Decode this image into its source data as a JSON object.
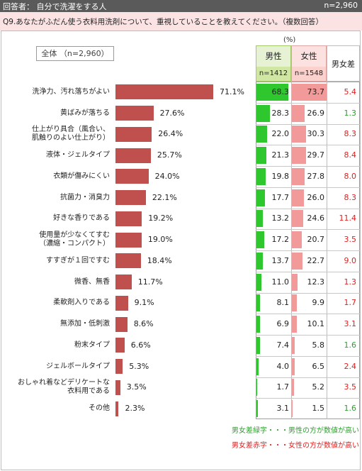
{
  "header": {
    "title": "回答者： 自分で洗濯をする人",
    "n": "n=2,960"
  },
  "question": "Q9.あなたがふだん使う衣料用洗剤について、重視していることを教えてください。（複数回答）",
  "unit": "(%)",
  "overall_label": "全体 （n=2,960）",
  "columns": {
    "male": {
      "title": "男性",
      "n": "n=1412"
    },
    "female": {
      "title": "女性",
      "n": "n=1548"
    },
    "diff": {
      "title": "男女差"
    }
  },
  "colors": {
    "bar": "#c0504d",
    "male": "#2ec82e",
    "female": "#f29a9a",
    "green_text": "#2e9e2e",
    "red_text": "#e02020"
  },
  "notes": {
    "green": "男女差緑字・・・男性の方が数値が高い",
    "red": "男女差赤字・・・女性の方が数値が高い"
  },
  "chart_data": {
    "type": "bar",
    "categories": [
      [
        "洗浄力、汚れ落ちがよい"
      ],
      [
        "黄ばみが落ちる"
      ],
      [
        "仕上がり具合（風合い、",
        "肌触りのよい仕上がり）"
      ],
      [
        "液体・ジェルタイプ"
      ],
      [
        "衣類が傷みにくい"
      ],
      [
        "抗菌力・消臭力"
      ],
      [
        "好きな香りである"
      ],
      [
        "使用量が少なくてすむ",
        "（濃縮・コンパクト）"
      ],
      [
        "すすぎが１回ですむ"
      ],
      [
        "微香、無香"
      ],
      [
        "柔軟剤入りである"
      ],
      [
        "無添加・低刺激"
      ],
      [
        "粉末タイプ"
      ],
      [
        "ジェルボールタイプ"
      ],
      [
        "おしゃれ着などデリケートな",
        "衣料用である"
      ],
      [
        "その他"
      ]
    ],
    "overall": [
      71.1,
      27.6,
      26.4,
      25.7,
      24.0,
      22.1,
      19.2,
      19.0,
      18.4,
      11.7,
      9.1,
      8.6,
      6.6,
      5.3,
      3.5,
      2.3
    ],
    "overall_labels": [
      "71.1%",
      "27.6%",
      "26.4%",
      "25.7%",
      "24.0%",
      "22.1%",
      "19.2%",
      "19.0%",
      "18.4%",
      "11.7%",
      "9.1%",
      "8.6%",
      "6.6%",
      "5.3%",
      "3.5%",
      "2.3%"
    ],
    "male": [
      68.3,
      28.3,
      22.0,
      21.3,
      19.8,
      17.7,
      13.2,
      17.2,
      13.7,
      11.0,
      8.1,
      6.9,
      7.4,
      4.0,
      1.7,
      3.1
    ],
    "male_labels": [
      "68.3",
      "28.3",
      "22.0",
      "21.3",
      "19.8",
      "17.7",
      "13.2",
      "17.2",
      "13.7",
      "11.0",
      "8.1",
      "6.9",
      "7.4",
      "4.0",
      "1.7",
      "3.1"
    ],
    "female": [
      73.7,
      26.9,
      30.3,
      29.7,
      27.8,
      26.0,
      24.6,
      20.7,
      22.7,
      12.3,
      9.9,
      10.1,
      5.8,
      6.5,
      5.2,
      1.5
    ],
    "female_labels": [
      "73.7",
      "26.9",
      "30.3",
      "29.7",
      "27.8",
      "26.0",
      "24.6",
      "20.7",
      "22.7",
      "12.3",
      "9.9",
      "10.1",
      "5.8",
      "6.5",
      "5.2",
      "1.5"
    ],
    "diff": [
      5.4,
      1.3,
      8.3,
      8.4,
      8.0,
      8.3,
      11.4,
      3.5,
      9.0,
      1.3,
      1.7,
      3.1,
      1.6,
      2.4,
      3.5,
      1.6
    ],
    "diff_labels": [
      "5.4",
      "1.3",
      "8.3",
      "8.4",
      "8.0",
      "8.3",
      "11.4",
      "3.5",
      "9.0",
      "1.3",
      "1.7",
      "3.1",
      "1.6",
      "2.4",
      "3.5",
      "1.6"
    ],
    "diff_higher": [
      "female",
      "male",
      "female",
      "female",
      "female",
      "female",
      "female",
      "female",
      "female",
      "female",
      "female",
      "female",
      "male",
      "female",
      "female",
      "male"
    ]
  }
}
